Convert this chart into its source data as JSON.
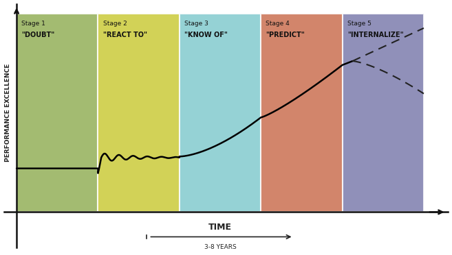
{
  "stages": [
    {
      "label": "Stage 1",
      "quote": "\"DOUBT\"",
      "color": "#8fac52"
    },
    {
      "label": "Stage 2",
      "quote": "\"REACT TO\"",
      "color": "#c8c832"
    },
    {
      "label": "Stage 3",
      "quote": "\"KNOW OF\"",
      "color": "#7ec8cc"
    },
    {
      "label": "Stage 4",
      "quote": "\"PREDICT\"",
      "color": "#c96a4a"
    },
    {
      "label": "Stage 5",
      "quote": "\"INTERNALIZE\"",
      "color": "#7878aa"
    }
  ],
  "ylabel": "PERFORMANCE EXCELLENCE",
  "xlabel": "TIME",
  "time_label": "3-8 YEARS",
  "background": "#ffffff",
  "figsize": [
    6.57,
    3.72
  ],
  "dpi": 100
}
